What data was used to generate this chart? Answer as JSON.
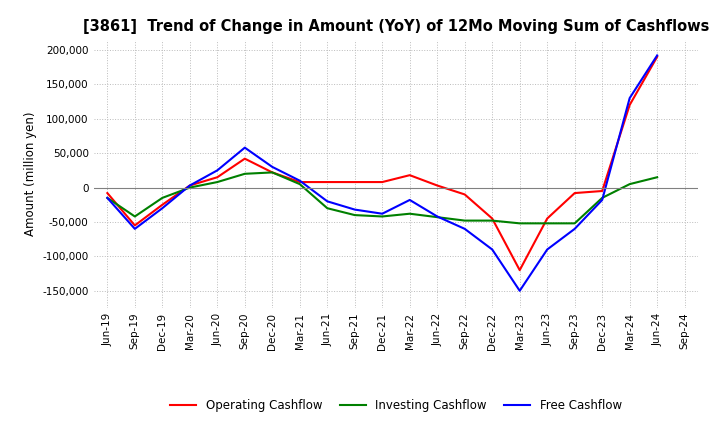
{
  "title": "[3861]  Trend of Change in Amount (YoY) of 12Mo Moving Sum of Cashflows",
  "ylabel": "Amount (million yen)",
  "ylim": [
    -175000,
    215000
  ],
  "yticks": [
    -150000,
    -100000,
    -50000,
    0,
    50000,
    100000,
    150000,
    200000
  ],
  "background_color": "#ffffff",
  "grid_color": "#bbbbbb",
  "x_labels": [
    "Jun-19",
    "Sep-19",
    "Dec-19",
    "Mar-20",
    "Jun-20",
    "Sep-20",
    "Dec-20",
    "Mar-21",
    "Jun-21",
    "Sep-21",
    "Dec-21",
    "Mar-22",
    "Jun-22",
    "Sep-22",
    "Dec-22",
    "Mar-23",
    "Jun-23",
    "Sep-23",
    "Dec-23",
    "Mar-24",
    "Jun-24",
    "Sep-24"
  ],
  "operating_cashflow": [
    -8000,
    -55000,
    -25000,
    3000,
    15000,
    42000,
    22000,
    8000,
    8000,
    8000,
    8000,
    18000,
    3000,
    -10000,
    -45000,
    -120000,
    -45000,
    -8000,
    -5000,
    120000,
    190000,
    null
  ],
  "investing_cashflow": [
    -15000,
    -42000,
    -15000,
    0,
    8000,
    20000,
    22000,
    5000,
    -30000,
    -40000,
    -42000,
    -38000,
    -43000,
    -48000,
    -48000,
    -52000,
    -52000,
    -52000,
    -15000,
    5000,
    15000,
    null
  ],
  "free_cashflow": [
    -15000,
    -60000,
    -30000,
    3000,
    25000,
    58000,
    30000,
    10000,
    -20000,
    -32000,
    -38000,
    -18000,
    -42000,
    -60000,
    -90000,
    -150000,
    -90000,
    -60000,
    -18000,
    130000,
    192000,
    null
  ],
  "line_colors": {
    "operating": "#ff0000",
    "investing": "#008000",
    "free": "#0000ff"
  },
  "legend_labels": [
    "Operating Cashflow",
    "Investing Cashflow",
    "Free Cashflow"
  ],
  "title_fontsize": 10.5,
  "ylabel_fontsize": 8.5,
  "tick_fontsize": 7.5,
  "legend_fontsize": 8.5,
  "linewidth": 1.5
}
